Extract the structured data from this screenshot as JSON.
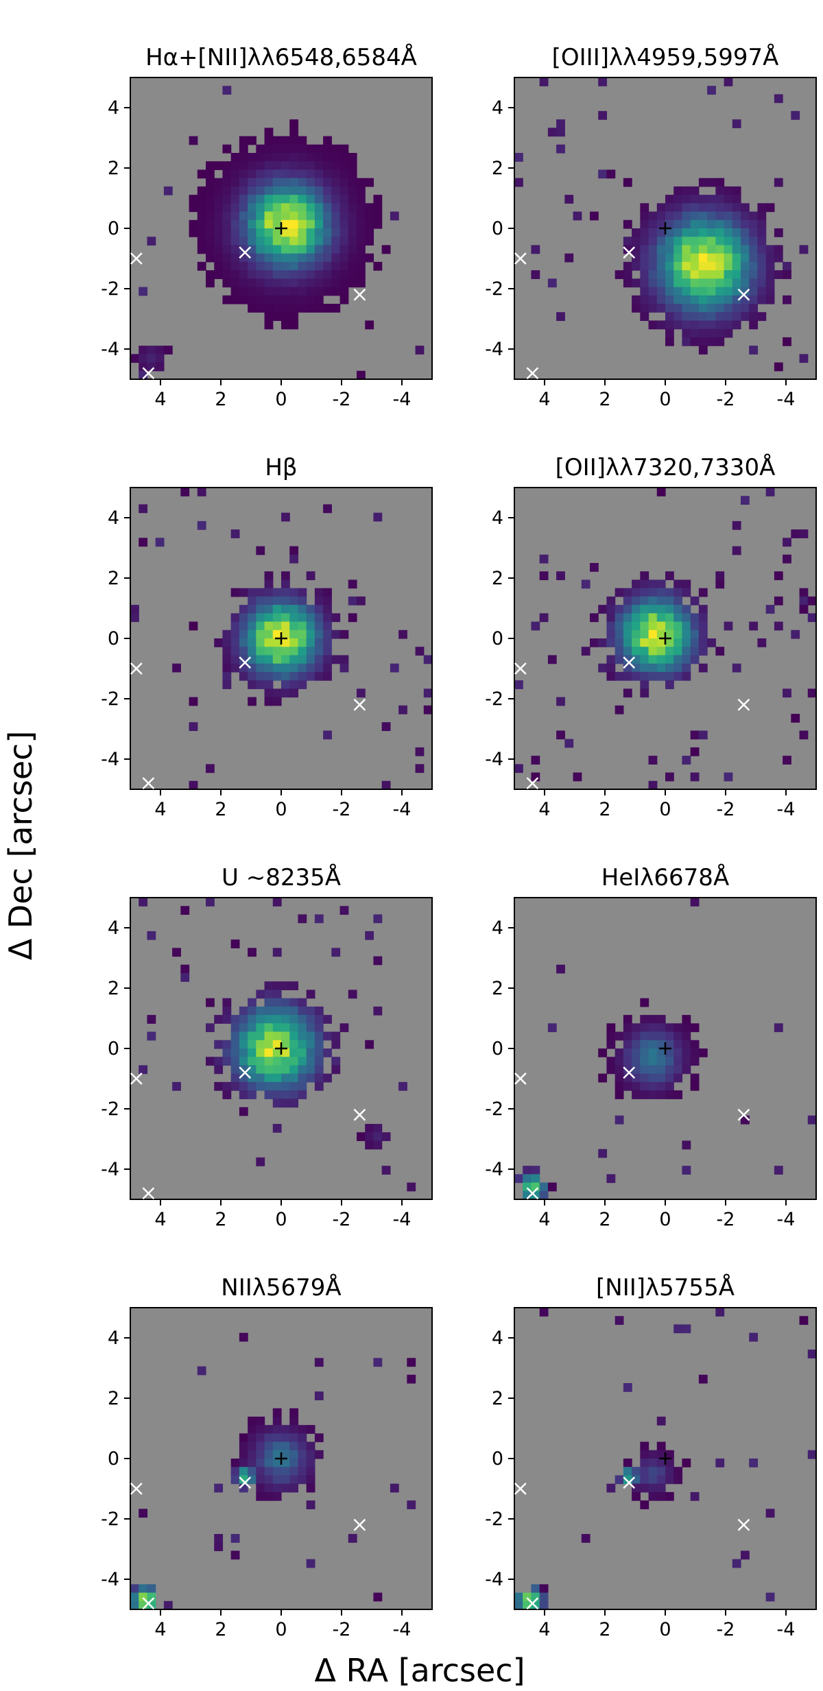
{
  "figure": {
    "xlabel": "Δ RA [arcsec]",
    "ylabel": "Δ Dec [arcsec]"
  },
  "colors": {
    "background_fill": "#8a8a8a",
    "colormap": [
      "#440154",
      "#46317e",
      "#365c8d",
      "#277f8e",
      "#1fa187",
      "#4ac16d",
      "#a0da39",
      "#fde725"
    ],
    "center_marker": "#000000",
    "star_marker": "#ffffff"
  },
  "chart_data": [
    {
      "type": "heatmap",
      "title": "Hα+[NII]λλ6548,6584Å",
      "x_range": [
        5,
        -5
      ],
      "y_range": [
        -5,
        5
      ],
      "x_ticks": [
        "4",
        "2",
        "0",
        "-2",
        "-4"
      ],
      "y_ticks": [
        "4",
        "2",
        "0",
        "-2",
        "-4"
      ],
      "center_marker": {
        "symbol": "+",
        "x": 0,
        "y": 0
      },
      "star_markers": [
        {
          "x": 4.8,
          "y": -1.0
        },
        {
          "x": 1.2,
          "y": -0.8
        },
        {
          "x": -2.6,
          "y": -2.2
        },
        {
          "x": 4.4,
          "y": -4.8
        }
      ],
      "emission": {
        "peak_x": -0.2,
        "peak_y": 0.1,
        "core_radius": 0.9,
        "extent_radius": 3.1,
        "noise_fraction": 0.01,
        "peak_intensity": 1.0
      },
      "knots": [
        {
          "x": 4.3,
          "y": -4.3,
          "intensity": 0.1,
          "radius": 0.5
        }
      ]
    },
    {
      "type": "heatmap",
      "title": "[OIII]λλ4959,5997Å",
      "x_range": [
        5,
        -5
      ],
      "y_range": [
        -5,
        5
      ],
      "x_ticks": [
        "4",
        "2",
        "0",
        "-2",
        "-4"
      ],
      "y_ticks": [
        "4",
        "2",
        "0",
        "-2",
        "-4"
      ],
      "center_marker": {
        "symbol": "+",
        "x": 0,
        "y": 0
      },
      "star_markers": [
        {
          "x": 4.8,
          "y": -1.0
        },
        {
          "x": 1.2,
          "y": -0.8
        },
        {
          "x": -2.6,
          "y": -2.2
        },
        {
          "x": 4.4,
          "y": -4.8
        }
      ],
      "emission": {
        "peak_x": -1.3,
        "peak_y": -1.2,
        "core_radius": 1.0,
        "extent_radius": 2.6,
        "noise_fraction": 0.03,
        "peak_intensity": 1.0
      },
      "knots": []
    },
    {
      "type": "heatmap",
      "title": "Hβ",
      "x_range": [
        5,
        -5
      ],
      "y_range": [
        -5,
        5
      ],
      "x_ticks": [
        "4",
        "2",
        "0",
        "-2",
        "-4"
      ],
      "y_ticks": [
        "4",
        "2",
        "0",
        "-2",
        "-4"
      ],
      "center_marker": {
        "symbol": "+",
        "x": 0,
        "y": 0
      },
      "star_markers": [
        {
          "x": 4.8,
          "y": -1.0
        },
        {
          "x": 1.2,
          "y": -0.8
        },
        {
          "x": -2.6,
          "y": -2.2
        },
        {
          "x": 4.4,
          "y": -4.8
        }
      ],
      "emission": {
        "peak_x": 0.0,
        "peak_y": 0.0,
        "core_radius": 0.8,
        "extent_radius": 1.9,
        "noise_fraction": 0.03,
        "peak_intensity": 1.0
      },
      "knots": []
    },
    {
      "type": "heatmap",
      "title": "[OII]λλ7320,7330Å",
      "x_range": [
        5,
        -5
      ],
      "y_range": [
        -5,
        5
      ],
      "x_ticks": [
        "4",
        "2",
        "0",
        "-2",
        "-4"
      ],
      "y_ticks": [
        "4",
        "2",
        "0",
        "-2",
        "-4"
      ],
      "center_marker": {
        "symbol": "+",
        "x": 0,
        "y": 0
      },
      "star_markers": [
        {
          "x": 4.8,
          "y": -1.0
        },
        {
          "x": 1.2,
          "y": -0.8
        },
        {
          "x": -2.6,
          "y": -2.2
        },
        {
          "x": 4.4,
          "y": -4.8
        }
      ],
      "emission": {
        "peak_x": 0.3,
        "peak_y": 0.1,
        "core_radius": 0.8,
        "extent_radius": 1.8,
        "noise_fraction": 0.05,
        "peak_intensity": 0.95
      },
      "knots": []
    },
    {
      "type": "heatmap",
      "title": "U ~8235Å",
      "x_range": [
        5,
        -5
      ],
      "y_range": [
        -5,
        5
      ],
      "x_ticks": [
        "4",
        "2",
        "0",
        "-2",
        "-4"
      ],
      "y_ticks": [
        "4",
        "2",
        "0",
        "-2",
        "-4"
      ],
      "center_marker": {
        "symbol": "+",
        "x": 0,
        "y": 0
      },
      "star_markers": [
        {
          "x": 4.8,
          "y": -1.0
        },
        {
          "x": 1.2,
          "y": -0.8
        },
        {
          "x": -2.6,
          "y": -2.2
        },
        {
          "x": 4.4,
          "y": -4.8
        }
      ],
      "emission": {
        "peak_x": 0.2,
        "peak_y": 0.0,
        "core_radius": 0.9,
        "extent_radius": 1.9,
        "noise_fraction": 0.03,
        "peak_intensity": 0.9
      },
      "knots": [
        {
          "x": -3.2,
          "y": -2.9,
          "intensity": 0.1,
          "radius": 0.45
        }
      ]
    },
    {
      "type": "heatmap",
      "title": "HeIλ6678Å",
      "x_range": [
        5,
        -5
      ],
      "y_range": [
        -5,
        5
      ],
      "x_ticks": [
        "4",
        "2",
        "0",
        "-2",
        "-4"
      ],
      "y_ticks": [
        "4",
        "2",
        "0",
        "-2",
        "-4"
      ],
      "center_marker": {
        "symbol": "+",
        "x": 0,
        "y": 0
      },
      "star_markers": [
        {
          "x": 4.8,
          "y": -1.0
        },
        {
          "x": 1.2,
          "y": -0.8
        },
        {
          "x": -2.6,
          "y": -2.2
        },
        {
          "x": 4.4,
          "y": -4.8
        }
      ],
      "emission": {
        "peak_x": 0.4,
        "peak_y": -0.3,
        "core_radius": 0.6,
        "extent_radius": 1.5,
        "noise_fraction": 0.02,
        "peak_intensity": 0.4
      },
      "knots": [
        {
          "x": 4.4,
          "y": -4.6,
          "intensity": 0.75,
          "radius": 0.5
        }
      ]
    },
    {
      "type": "heatmap",
      "title": "NIIλ5679Å",
      "x_range": [
        5,
        -5
      ],
      "y_range": [
        -5,
        5
      ],
      "x_ticks": [
        "4",
        "2",
        "0",
        "-2",
        "-4"
      ],
      "y_ticks": [
        "4",
        "2",
        "0",
        "-2",
        "-4"
      ],
      "center_marker": {
        "symbol": "+",
        "x": 0,
        "y": 0
      },
      "star_markers": [
        {
          "x": 4.8,
          "y": -1.0
        },
        {
          "x": 1.2,
          "y": -0.8
        },
        {
          "x": -2.6,
          "y": -2.2
        },
        {
          "x": 4.4,
          "y": -4.8
        }
      ],
      "emission": {
        "peak_x": 0.0,
        "peak_y": 0.0,
        "core_radius": 0.6,
        "extent_radius": 1.3,
        "noise_fraction": 0.02,
        "peak_intensity": 0.35
      },
      "knots": [
        {
          "x": 1.2,
          "y": -0.6,
          "intensity": 0.7,
          "radius": 0.35
        },
        {
          "x": 4.5,
          "y": -4.7,
          "intensity": 0.9,
          "radius": 0.5
        }
      ]
    },
    {
      "type": "heatmap",
      "title": "[NII]λ5755Å",
      "x_range": [
        5,
        -5
      ],
      "y_range": [
        -5,
        5
      ],
      "x_ticks": [
        "4",
        "2",
        "0",
        "-2",
        "-4"
      ],
      "y_ticks": [
        "4",
        "2",
        "0",
        "-2",
        "-4"
      ],
      "center_marker": {
        "symbol": "+",
        "x": 0,
        "y": 0
      },
      "star_markers": [
        {
          "x": 4.8,
          "y": -1.0
        },
        {
          "x": 1.2,
          "y": -0.8
        },
        {
          "x": -2.6,
          "y": -2.2
        },
        {
          "x": 4.4,
          "y": -4.8
        }
      ],
      "emission": {
        "peak_x": 0.4,
        "peak_y": -0.5,
        "core_radius": 0.4,
        "extent_radius": 0.9,
        "noise_fraction": 0.02,
        "peak_intensity": 0.2
      },
      "knots": [
        {
          "x": 1.2,
          "y": -0.6,
          "intensity": 0.6,
          "radius": 0.35
        },
        {
          "x": 4.5,
          "y": -4.7,
          "intensity": 0.85,
          "radius": 0.5
        }
      ]
    }
  ]
}
